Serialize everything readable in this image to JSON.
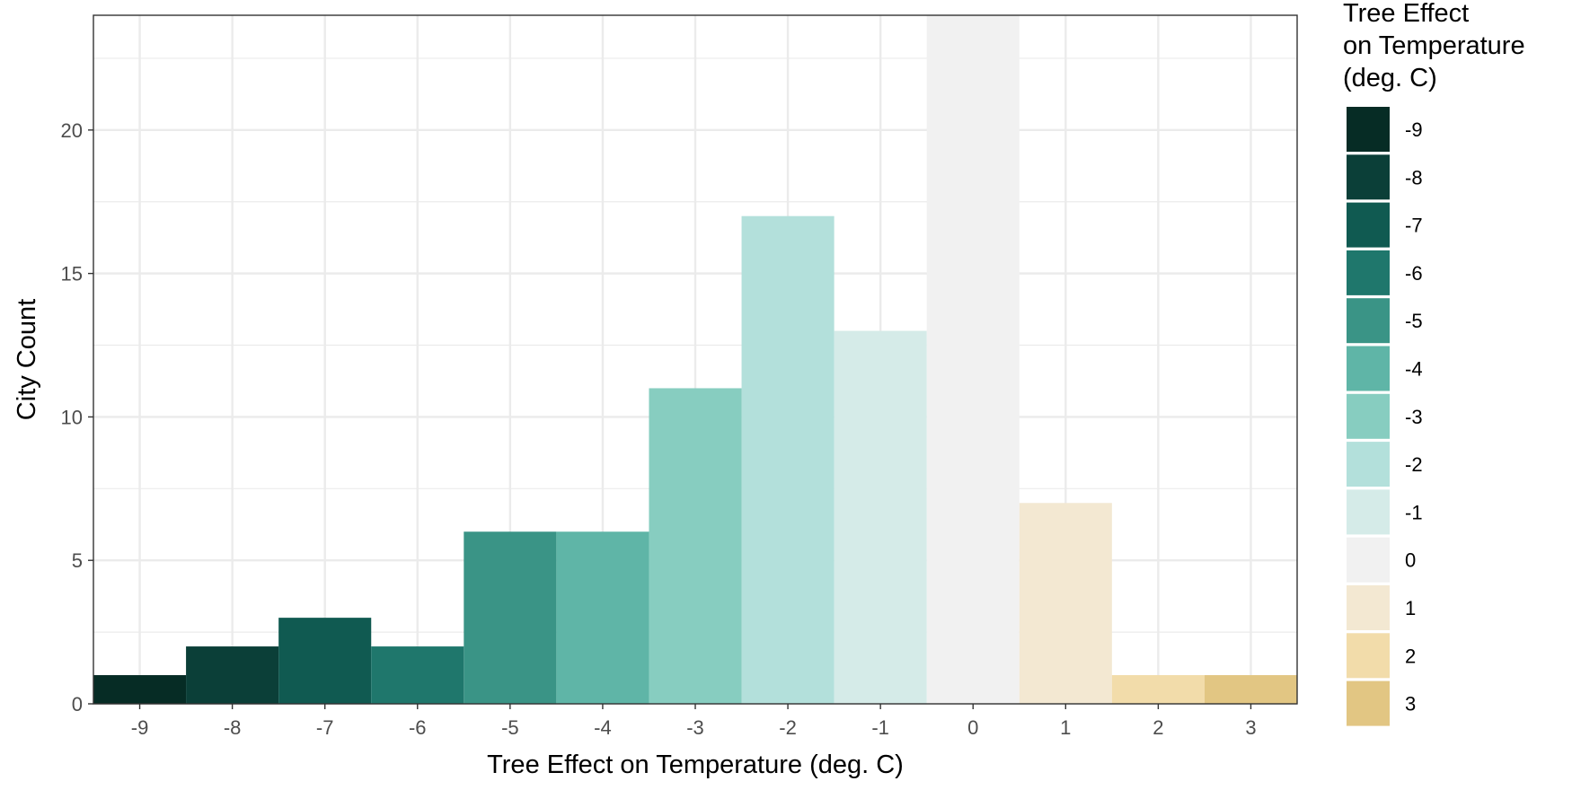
{
  "chart_data": {
    "type": "bar",
    "title": "",
    "xlabel": "Tree Effect on Temperature (deg. C)",
    "ylabel": "City Count",
    "categories": [
      "-9",
      "-8",
      "-7",
      "-6",
      "-5",
      "-4",
      "-3",
      "-2",
      "-1",
      "0",
      "1",
      "2",
      "3"
    ],
    "x": [
      -9,
      -8,
      -7,
      -6,
      -5,
      -4,
      -3,
      -2,
      -1,
      0,
      1,
      2,
      3
    ],
    "values": [
      1,
      2,
      3,
      2,
      6,
      6,
      11,
      17,
      13,
      24,
      7,
      1,
      1
    ],
    "colors": [
      "#062c25",
      "#0b3f38",
      "#105a51",
      "#1f776c",
      "#3a9486",
      "#5fb5a7",
      "#87cdc0",
      "#b3e0db",
      "#d5ebe8",
      "#f1f1f1",
      "#f3e8d2",
      "#f2dcaa",
      "#e2c683"
    ],
    "xlim": [
      -9.5,
      3.5
    ],
    "ylim": [
      0,
      24
    ],
    "y_ticks": [
      0,
      5,
      10,
      15,
      20
    ],
    "x_ticks": [
      "-9",
      "-8",
      "-7",
      "-6",
      "-5",
      "-4",
      "-3",
      "-2",
      "-1",
      "0",
      "1",
      "2",
      "3"
    ],
    "grid": true,
    "legend": {
      "title_lines": [
        "Tree Effect",
        "on Temperature",
        "(deg. C)"
      ],
      "placement": "right",
      "entries": [
        "-9",
        "-8",
        "-7",
        "-6",
        "-5",
        "-4",
        "-3",
        "-2",
        "-1",
        "0",
        "1",
        "2",
        "3"
      ]
    }
  }
}
